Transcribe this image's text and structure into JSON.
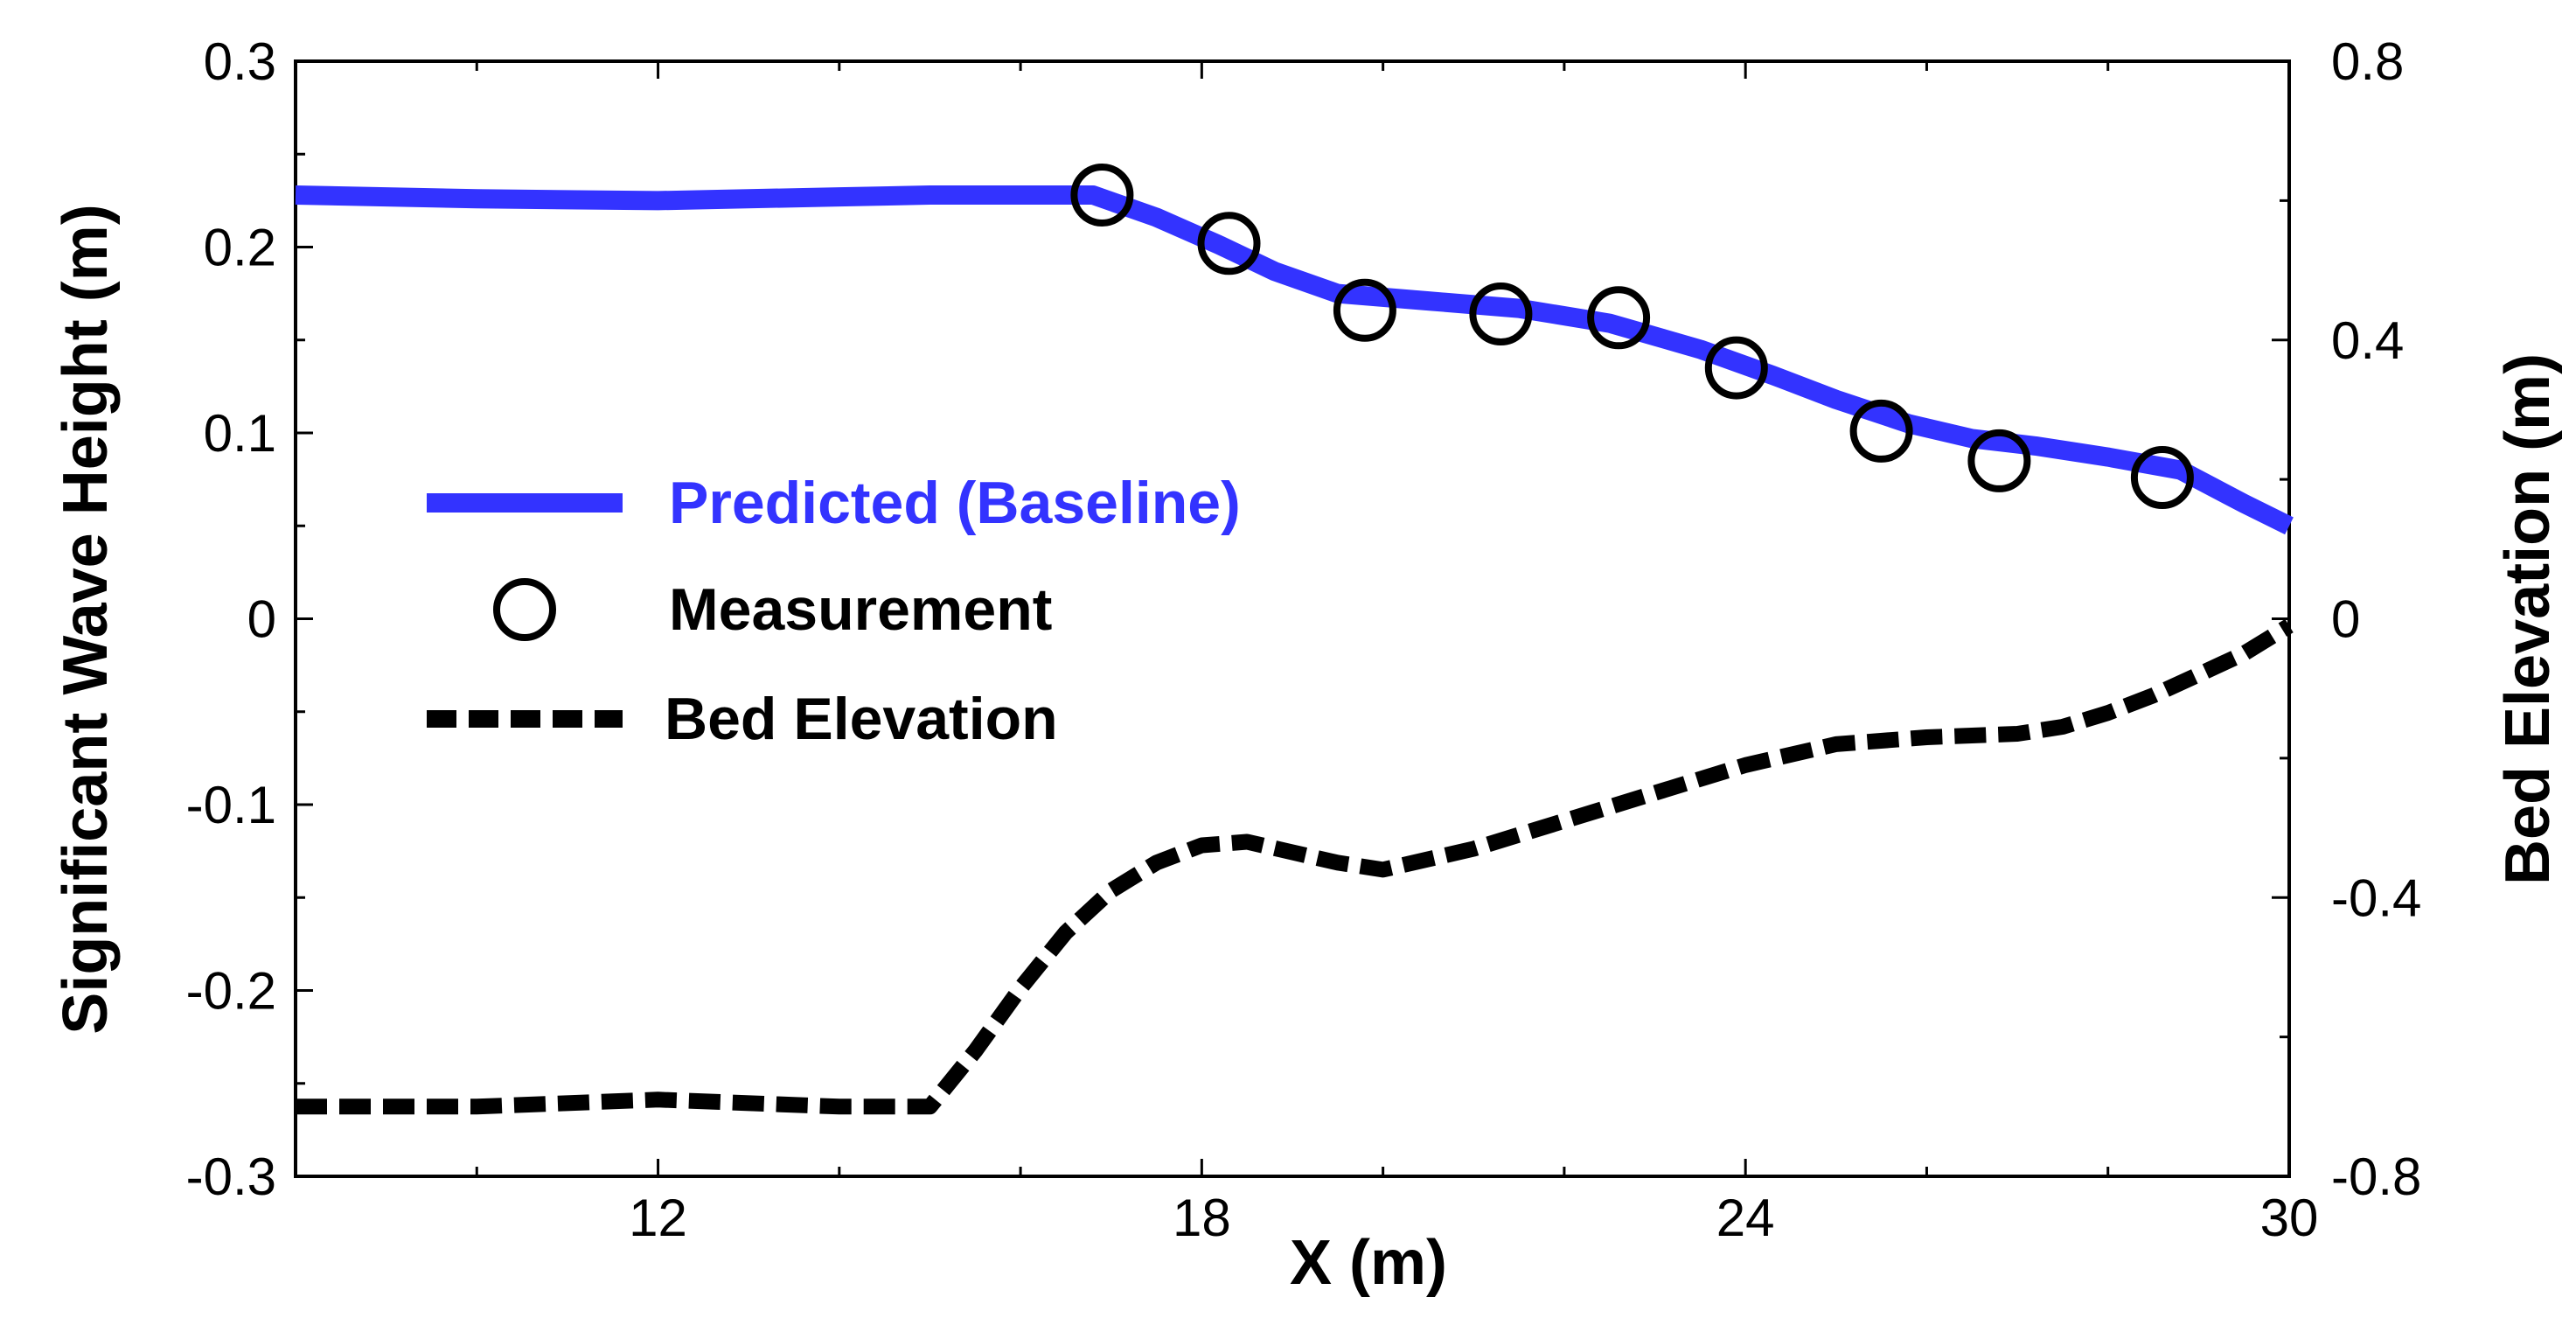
{
  "chart_data": {
    "type": "line",
    "title": "",
    "xlabel": "X (m)",
    "ylabel": "Significant Wave Height (m)",
    "y2label": "Bed Elevation (m)",
    "xlim": [
      8,
      30
    ],
    "ylim": [
      -0.3,
      0.3
    ],
    "y2lim": [
      -0.8,
      0.8
    ],
    "x_ticks": [
      12,
      18,
      24,
      30
    ],
    "x_tick_labels": [
      "12",
      "18",
      "24",
      "30"
    ],
    "y_ticks": [
      0.3,
      0.2,
      0.1,
      0,
      -0.1,
      -0.2,
      -0.3
    ],
    "y_tick_labels": [
      "0.3",
      "0.2",
      "0.1",
      "0",
      "-0.1",
      "-0.2",
      "-0.3"
    ],
    "y2_ticks": [
      0.8,
      0.4,
      0,
      -0.4,
      -0.8
    ],
    "y2_tick_labels": [
      "0.8",
      "0.4",
      "0",
      "-0.4",
      "-0.8"
    ],
    "grid": false,
    "legend_position": "left-middle",
    "series": [
      {
        "name": "Predicted (Baseline)",
        "axis": "left",
        "style": "solid",
        "color": "#3333ff",
        "x": [
          8,
          10,
          12,
          14,
          15,
          16,
          16.8,
          17.5,
          18.2,
          18.8,
          19.5,
          20.5,
          21.5,
          22.5,
          23.5,
          24.3,
          25.0,
          25.8,
          26.5,
          27.2,
          28.0,
          28.8,
          29.5,
          30
        ],
        "y": [
          0.228,
          0.226,
          0.225,
          0.227,
          0.228,
          0.228,
          0.228,
          0.216,
          0.201,
          0.187,
          0.175,
          0.171,
          0.167,
          0.159,
          0.145,
          0.131,
          0.118,
          0.105,
          0.097,
          0.093,
          0.087,
          0.08,
          0.062,
          0.05
        ]
      },
      {
        "name": "Measurement",
        "axis": "left",
        "style": "marker",
        "color": "#000000",
        "x": [
          16.9,
          18.3,
          19.8,
          21.3,
          22.6,
          23.9,
          25.5,
          26.8,
          28.6
        ],
        "y": [
          0.228,
          0.202,
          0.166,
          0.164,
          0.162,
          0.135,
          0.101,
          0.085,
          0.076
        ]
      },
      {
        "name": "Bed Elevation",
        "axis": "right",
        "style": "dashed",
        "color": "#000000",
        "x": [
          8,
          10,
          12,
          14,
          15.0,
          15.5,
          16,
          16.5,
          17,
          17.5,
          18,
          18.5,
          19,
          19.5,
          20,
          21,
          22,
          23,
          24,
          25,
          26,
          27,
          27.5,
          28,
          28.5,
          29,
          29.5,
          30
        ],
        "y": [
          -0.7,
          -0.7,
          -0.69,
          -0.7,
          -0.7,
          -0.62,
          -0.53,
          -0.45,
          -0.39,
          -0.35,
          -0.325,
          -0.32,
          -0.335,
          -0.35,
          -0.36,
          -0.33,
          -0.29,
          -0.25,
          -0.21,
          -0.18,
          -0.17,
          -0.165,
          -0.155,
          -0.135,
          -0.11,
          -0.08,
          -0.05,
          -0.01
        ]
      }
    ]
  }
}
